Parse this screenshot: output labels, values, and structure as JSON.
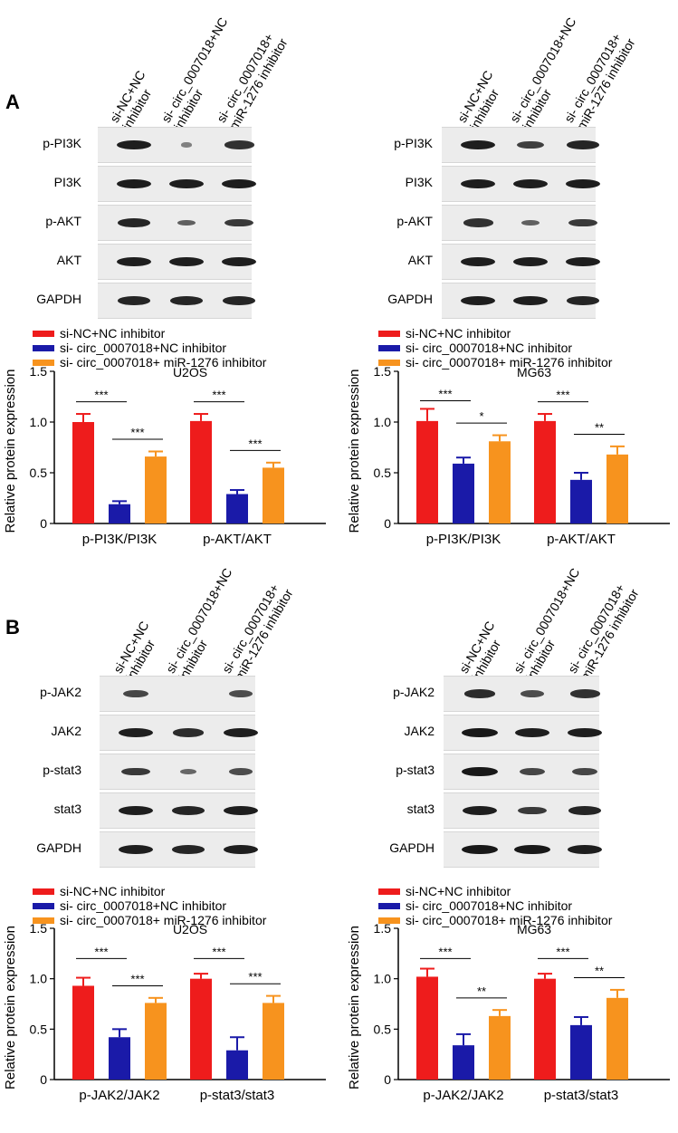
{
  "panels": [
    {
      "letter": "A",
      "blots": [
        {
          "columns": [
            [
              "si-NC+NC",
              "inhibitor"
            ],
            [
              "si- circ_0007018+NC",
              "inhibitor"
            ],
            [
              "si- circ_0007018+",
              "miR-1276 inhibitor"
            ]
          ],
          "rows": [
            {
              "label": "p-PI3K",
              "bands": [
                0.9,
                0.15,
                0.75
              ]
            },
            {
              "label": "PI3K",
              "bands": [
                0.9,
                0.9,
                0.9
              ]
            },
            {
              "label": "p-AKT",
              "bands": [
                0.85,
                0.4,
                0.7
              ]
            },
            {
              "label": "AKT",
              "bands": [
                0.9,
                0.9,
                0.9
              ]
            },
            {
              "label": "GAPDH",
              "bands": [
                0.85,
                0.85,
                0.85
              ]
            }
          ]
        },
        {
          "columns": [
            [
              "si-NC+NC",
              "inhibitor"
            ],
            [
              "si- circ_0007018+NC",
              "inhibitor"
            ],
            [
              "si- circ_0007018+",
              "miR-1276 inhibitor"
            ]
          ],
          "rows": [
            {
              "label": "p-PI3K",
              "bands": [
                0.9,
                0.65,
                0.85
              ]
            },
            {
              "label": "PI3K",
              "bands": [
                0.9,
                0.9,
                0.9
              ]
            },
            {
              "label": "p-AKT",
              "bands": [
                0.75,
                0.4,
                0.7
              ]
            },
            {
              "label": "AKT",
              "bands": [
                0.9,
                0.9,
                0.9
              ]
            },
            {
              "label": "GAPDH",
              "bands": [
                0.9,
                0.9,
                0.85
              ]
            }
          ]
        }
      ]
    },
    {
      "letter": "B",
      "blots": [
        {
          "columns": [
            [
              "si-NC+NC",
              "inhibitor"
            ],
            [
              "si- circ_0007018+NC",
              "inhibitor"
            ],
            [
              "si- circ_0007018+",
              "miR-1276 inhibitor"
            ]
          ],
          "rows": [
            {
              "label": "p-JAK2",
              "bands": [
                0.6,
                0.0,
                0.55
              ]
            },
            {
              "label": "JAK2",
              "bands": [
                0.9,
                0.8,
                0.9
              ]
            },
            {
              "label": "p-stat3",
              "bands": [
                0.7,
                0.35,
                0.55
              ]
            },
            {
              "label": "stat3",
              "bands": [
                0.9,
                0.85,
                0.9
              ]
            },
            {
              "label": "GAPDH",
              "bands": [
                0.9,
                0.85,
                0.9
              ]
            }
          ]
        },
        {
          "columns": [
            [
              "si-NC+NC",
              "inhibitor"
            ],
            [
              "si- circ_0007018+NC",
              "inhibitor"
            ],
            [
              "si- circ_0007018+",
              "miR-1276 inhibitor"
            ]
          ],
          "rows": [
            {
              "label": "p-JAK2",
              "bands": [
                0.8,
                0.55,
                0.75
              ]
            },
            {
              "label": "JAK2",
              "bands": [
                0.95,
                0.9,
                0.9
              ]
            },
            {
              "label": "p-stat3",
              "bands": [
                0.95,
                0.6,
                0.6
              ]
            },
            {
              "label": "stat3",
              "bands": [
                0.9,
                0.7,
                0.85
              ]
            },
            {
              "label": "GAPDH",
              "bands": [
                0.95,
                0.95,
                0.9
              ]
            }
          ]
        }
      ]
    }
  ],
  "legend": {
    "entries": [
      "si-NC+NC inhibitor",
      "si- circ_0007018+NC inhibitor",
      "si- circ_0007018+ miR-1276 inhibitor"
    ],
    "colors": [
      "#ee1c1c",
      "#1a1aa8",
      "#f7931e"
    ]
  },
  "chart_data": [
    {
      "type": "bar",
      "title": "U2OS",
      "ylabel": "Relative protein expression",
      "ylim": [
        0,
        1.5
      ],
      "yticks": [
        "0",
        "0.5",
        "1.0",
        "1.5"
      ],
      "categories": [
        "p-PI3K/PI3K",
        "p-AKT/AKT"
      ],
      "series": [
        {
          "name": "si-NC+NC inhibitor",
          "values": [
            1.0,
            1.01
          ],
          "errors": [
            0.08,
            0.07
          ]
        },
        {
          "name": "si- circ_0007018+NC inhibitor",
          "values": [
            0.19,
            0.29
          ],
          "errors": [
            0.03,
            0.04
          ]
        },
        {
          "name": "si- circ_0007018+ miR-1276 inhibitor",
          "values": [
            0.66,
            0.55
          ],
          "errors": [
            0.05,
            0.05
          ]
        }
      ],
      "significance": [
        [
          "***",
          "***"
        ],
        [
          "***",
          "***"
        ]
      ]
    },
    {
      "type": "bar",
      "title": "MG63",
      "ylabel": "Relative protein expression",
      "ylim": [
        0,
        1.5
      ],
      "yticks": [
        "0",
        "0.5",
        "1.0",
        "1.5"
      ],
      "categories": [
        "p-PI3K/PI3K",
        "p-AKT/AKT"
      ],
      "series": [
        {
          "name": "si-NC+NC inhibitor",
          "values": [
            1.01,
            1.01
          ],
          "errors": [
            0.12,
            0.07
          ]
        },
        {
          "name": "si- circ_0007018+NC inhibitor",
          "values": [
            0.59,
            0.43
          ],
          "errors": [
            0.06,
            0.07
          ]
        },
        {
          "name": "si- circ_0007018+ miR-1276 inhibitor",
          "values": [
            0.81,
            0.68
          ],
          "errors": [
            0.06,
            0.08
          ]
        }
      ],
      "significance": [
        [
          "***",
          "*"
        ],
        [
          "***",
          "**"
        ]
      ]
    },
    {
      "type": "bar",
      "title": "U2OS",
      "ylabel": "Relative protein expression",
      "ylim": [
        0,
        1.5
      ],
      "yticks": [
        "0",
        "0.5",
        "1.0",
        "1.5"
      ],
      "categories": [
        "p-JAK2/JAK2",
        "p-stat3/stat3"
      ],
      "series": [
        {
          "name": "si-NC+NC inhibitor",
          "values": [
            0.93,
            1.0
          ],
          "errors": [
            0.08,
            0.05
          ]
        },
        {
          "name": "si- circ_0007018+NC inhibitor",
          "values": [
            0.42,
            0.29
          ],
          "errors": [
            0.08,
            0.13
          ]
        },
        {
          "name": "si- circ_0007018+ miR-1276 inhibitor",
          "values": [
            0.76,
            0.76
          ],
          "errors": [
            0.05,
            0.07
          ]
        }
      ],
      "significance": [
        [
          "***",
          "***"
        ],
        [
          "***",
          "***"
        ]
      ]
    },
    {
      "type": "bar",
      "title": "MG63",
      "ylabel": "Relative protein expression",
      "ylim": [
        0,
        1.5
      ],
      "yticks": [
        "0",
        "0.5",
        "1.0",
        "1.5"
      ],
      "categories": [
        "p-JAK2/JAK2",
        "p-stat3/stat3"
      ],
      "series": [
        {
          "name": "si-NC+NC inhibitor",
          "values": [
            1.02,
            1.0
          ],
          "errors": [
            0.08,
            0.05
          ]
        },
        {
          "name": "si- circ_0007018+NC inhibitor",
          "values": [
            0.34,
            0.54
          ],
          "errors": [
            0.11,
            0.08
          ]
        },
        {
          "name": "si- circ_0007018+ miR-1276 inhibitor",
          "values": [
            0.63,
            0.81
          ],
          "errors": [
            0.06,
            0.08
          ]
        }
      ],
      "significance": [
        [
          "***",
          "**"
        ],
        [
          "***",
          "**"
        ]
      ]
    }
  ]
}
